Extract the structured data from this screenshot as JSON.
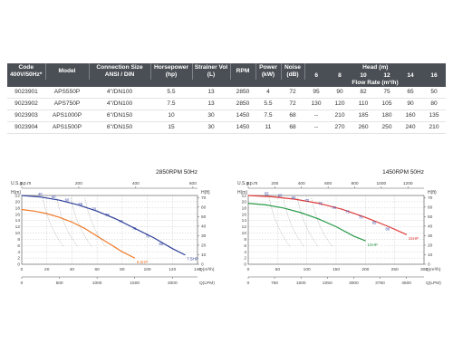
{
  "table": {
    "headers": {
      "code": "Code 400V/50Hz*",
      "model": "Model",
      "connection": "Connection Size ANSI / DIN",
      "horsepower": "Horsepower (hp)",
      "strainer": "Strainer Vol (L)",
      "rpm": "RPM",
      "power": "Power (kW)",
      "noise": "Noise (dB)",
      "head": "Head (m)",
      "flow_rate": "Flow Rate (m³/h)",
      "flow_points": [
        "6",
        "8",
        "10",
        "12",
        "14",
        "16"
      ]
    },
    "rows": [
      {
        "code": "9023901",
        "model": "APS550P",
        "connection": "4\"/DN100",
        "hp": "5.5",
        "strainer": "13",
        "rpm": "2850",
        "power": "4",
        "noise": "72",
        "heads": [
          "95",
          "90",
          "82",
          "75",
          "65",
          "50"
        ]
      },
      {
        "code": "9023902",
        "model": "APS750P",
        "connection": "4\"/DN100",
        "hp": "7.5",
        "strainer": "13",
        "rpm": "2850",
        "power": "5.5",
        "noise": "72",
        "heads": [
          "130",
          "120",
          "110",
          "105",
          "90",
          "80"
        ]
      },
      {
        "code": "9023903",
        "model": "APS1000P",
        "connection": "6\"/DN150",
        "hp": "10",
        "strainer": "30",
        "rpm": "1450",
        "power": "7.5",
        "noise": "68",
        "heads": [
          "--",
          "210",
          "185",
          "180",
          "160",
          "135"
        ]
      },
      {
        "code": "9023904",
        "model": "APS1500P",
        "connection": "6\"/DN150",
        "hp": "15",
        "strainer": "30",
        "rpm": "1450",
        "power": "11",
        "noise": "68",
        "heads": [
          "--",
          "270",
          "260",
          "250",
          "240",
          "210"
        ]
      }
    ]
  },
  "chart_data": [
    {
      "type": "line",
      "title": "2850RPM  50Hz",
      "ylabel_left": "H(m)",
      "ylabel_right": "H(ft)",
      "top_axis_label": "U.S.g.p.m",
      "x_unit_m3h": "Q(m³/h)",
      "x_unit_lpm": "Q(LPM)",
      "xlim": [
        0,
        140
      ],
      "ylim": [
        0,
        22
      ],
      "grid": true,
      "x_ticks": [
        0,
        20,
        40,
        60,
        80,
        100,
        120,
        140
      ],
      "y_ticks": [
        0,
        2,
        4,
        6,
        8,
        10,
        12,
        14,
        16,
        18,
        20,
        22
      ],
      "ft_ticks": [
        0,
        10,
        20,
        30,
        40,
        50,
        60,
        70
      ],
      "lpm_ticks": [
        "0",
        "500",
        "1000",
        "1500",
        "2000"
      ],
      "lpm_tick_x": [
        0,
        30,
        60,
        90,
        120
      ],
      "usgpm_ticks": [
        "0",
        "200",
        "400",
        "600"
      ],
      "usgpm_tick_x": [
        0,
        45.4,
        90.8,
        136.3
      ],
      "series": [
        {
          "name": "5.5HP",
          "color": "#f07a2a",
          "x": [
            0,
            10,
            20,
            30,
            40,
            50,
            60,
            70,
            80,
            90
          ],
          "y": [
            17.5,
            17,
            16.2,
            15,
            13.5,
            11.5,
            9,
            6.5,
            4,
            2
          ]
        },
        {
          "name": "7.5HP",
          "color": "#2e3f98",
          "x": [
            0,
            15,
            30,
            45,
            60,
            75,
            90,
            105,
            120,
            130
          ],
          "y": [
            22,
            21.5,
            20.5,
            19,
            17,
            14.5,
            11.5,
            8.5,
            5,
            3
          ]
        }
      ],
      "efficiency_labels": [
        "40",
        "50",
        "60",
        "65",
        "70",
        "75",
        "76",
        "75",
        "70",
        "65"
      ]
    },
    {
      "type": "line",
      "title": "1450RPM  50Hz",
      "ylabel_left": "H(m)",
      "ylabel_right": "H(ft)",
      "top_axis_label": "U.S.g.p.m",
      "x_unit_m3h": "Q(m³/h)",
      "x_unit_lpm": "Q(LPM)",
      "xlim": [
        0,
        300
      ],
      "ylim": [
        0,
        22
      ],
      "grid": true,
      "x_ticks": [
        0,
        50,
        100,
        150,
        200,
        250,
        300
      ],
      "y_ticks": [
        0,
        2,
        4,
        6,
        8,
        10,
        12,
        14,
        16,
        18,
        20,
        22
      ],
      "ft_ticks": [
        0,
        10,
        20,
        30,
        40,
        50,
        60,
        70
      ],
      "lpm_ticks": [
        "0",
        "750",
        "1500",
        "2250",
        "3000",
        "3750",
        "4500"
      ],
      "lpm_tick_x": [
        0,
        45,
        90,
        135,
        180,
        225,
        270
      ],
      "usgpm_ticks": [
        "0",
        "200",
        "400",
        "600",
        "800",
        "1000",
        "1200"
      ],
      "usgpm_tick_x": [
        0,
        45.4,
        90.8,
        136.3,
        181.7,
        227.1,
        272.5
      ],
      "series": [
        {
          "name": "10HP",
          "color": "#2a9a4a",
          "x": [
            0,
            30,
            60,
            90,
            120,
            150,
            180,
            200
          ],
          "y": [
            19.5,
            19,
            18,
            16.5,
            14.5,
            12,
            9,
            7.5
          ]
        },
        {
          "name": "15HP",
          "color": "#e03a3a",
          "x": [
            0,
            40,
            80,
            120,
            160,
            200,
            240,
            270
          ],
          "y": [
            22,
            21.6,
            20.8,
            19.5,
            17.6,
            15,
            12,
            9.5
          ]
        }
      ],
      "efficiency_labels": [
        "55",
        "60",
        "65",
        "70",
        "75",
        "78",
        "75",
        "70",
        "65",
        "80"
      ]
    }
  ]
}
